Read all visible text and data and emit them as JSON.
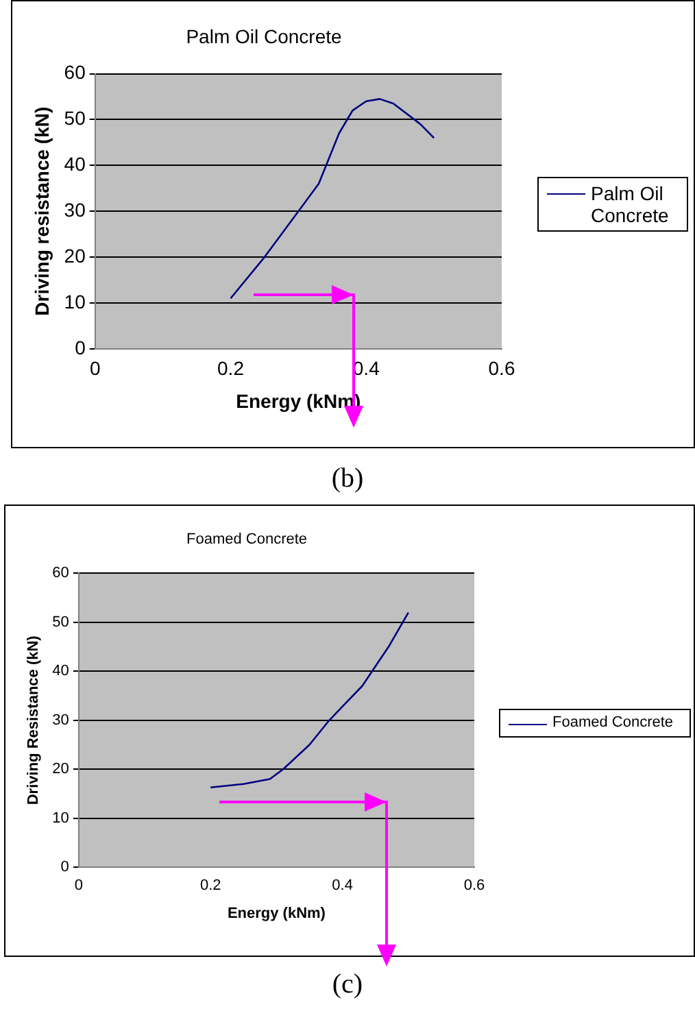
{
  "chart_data": [
    {
      "type": "line",
      "title": "Palm Oil Concrete",
      "xlabel": "Energy (kNm)",
      "ylabel": "Driving resistance (kN)",
      "xlim": [
        0,
        0.6
      ],
      "xticks": [
        0,
        0.2,
        0.4,
        0.6
      ],
      "ylim": [
        0,
        60
      ],
      "yticks": [
        0,
        10,
        20,
        30,
        40,
        50,
        60
      ],
      "grid": "y",
      "legend": "right",
      "marker": "none",
      "annotations": [
        "(b)"
      ],
      "series": [
        {
          "name": "Palm Oil Concrete",
          "color": "#000080",
          "x": [
            0.2,
            0.25,
            0.3,
            0.33,
            0.36,
            0.38,
            0.4,
            0.42,
            0.44,
            0.48,
            0.5
          ],
          "values": [
            11,
            20,
            30,
            36,
            47,
            52,
            54,
            54.5,
            53.5,
            49,
            46
          ]
        }
      ]
    },
    {
      "type": "line",
      "title": "Foamed Concrete",
      "xlabel": "Energy (kNm)",
      "ylabel": "Driving Resistance (kN)",
      "xlim": [
        0,
        0.6
      ],
      "xticks": [
        0,
        0.2,
        0.4,
        0.6
      ],
      "ylim": [
        0,
        60
      ],
      "yticks": [
        0,
        10,
        20,
        30,
        40,
        50,
        60
      ],
      "grid": "y",
      "legend": "right",
      "marker": "none",
      "annotations": [
        "(c)"
      ],
      "series": [
        {
          "name": "Foamed Concrete",
          "color": "#000080",
          "x": [
            0.2,
            0.25,
            0.29,
            0.31,
            0.35,
            0.38,
            0.43,
            0.47,
            0.5
          ],
          "values": [
            16.3,
            17,
            18,
            20,
            25,
            30,
            37,
            45,
            52
          ]
        }
      ]
    }
  ]
}
